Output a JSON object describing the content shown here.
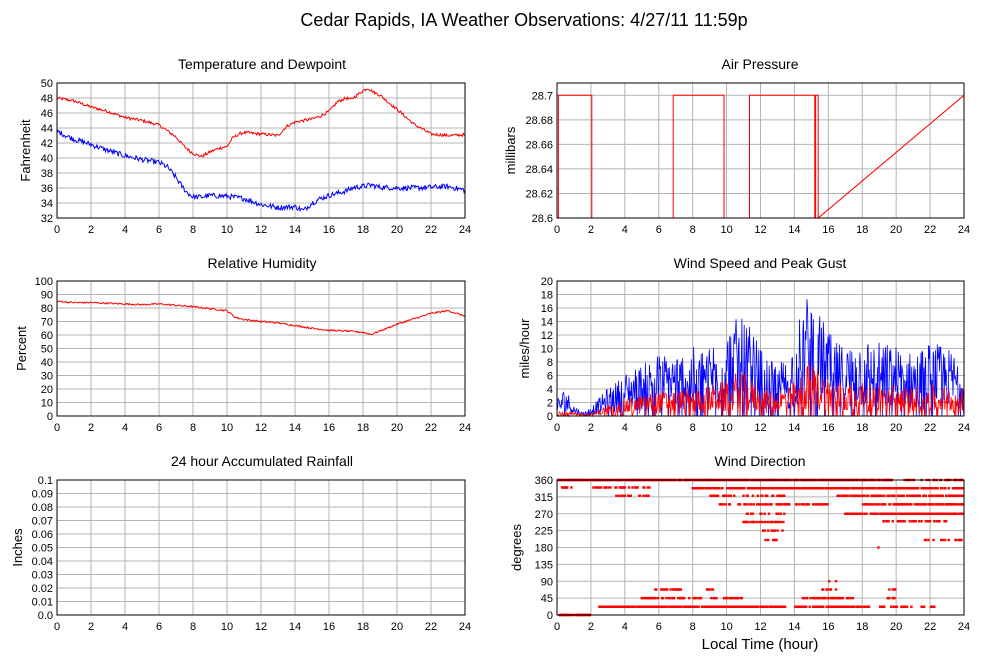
{
  "title": "Cedar Rapids, IA Weather Observations: 4/27/11 11:59p",
  "colors": {
    "primary": "#ff0000",
    "secondary": "#0000ff",
    "grid": "#b4b4b4"
  },
  "chart_data": [
    {
      "type": "line",
      "title": "Temperature and Dewpoint",
      "xlabel": "",
      "ylabel": "Fahrenheit",
      "xlim": [
        0,
        24
      ],
      "ylim": [
        32,
        50
      ],
      "xticks": [
        0,
        2,
        4,
        6,
        8,
        10,
        12,
        14,
        16,
        18,
        20,
        22,
        24
      ],
      "yticks": [
        "32",
        "34",
        "36",
        "38",
        "40",
        "42",
        "44",
        "46",
        "48",
        "50"
      ],
      "grid": true,
      "series": [
        {
          "color": "#ff0000",
          "noise": 0.2,
          "x": [
            0,
            1,
            2,
            3,
            4,
            5,
            6,
            7,
            7.5,
            8,
            8.5,
            9,
            9.5,
            10,
            10.3,
            10.7,
            11,
            12,
            13,
            13.5,
            14,
            14.5,
            15,
            15.5,
            16,
            16.5,
            17,
            17.3,
            17.6,
            18,
            18.3,
            18.6,
            19,
            19.5,
            20,
            20.5,
            21,
            22,
            23,
            24
          ],
          "y": [
            48,
            47.6,
            46.8,
            46.2,
            45.4,
            45,
            44.4,
            42.8,
            41.5,
            40.6,
            40.2,
            40.8,
            41.3,
            41.5,
            42.6,
            43.2,
            43.4,
            43.2,
            43,
            44.2,
            44.8,
            45,
            45.2,
            45.6,
            46.2,
            47.5,
            48,
            47.8,
            48.3,
            49,
            49.3,
            48.8,
            48.4,
            47.4,
            46.5,
            45.5,
            44.5,
            43.2,
            43,
            43.1
          ]
        },
        {
          "color": "#0000ff",
          "noise": 0.35,
          "x": [
            0,
            0.5,
            1,
            2,
            3,
            4,
            5,
            6,
            6.5,
            7,
            7.3,
            7.6,
            8,
            8.5,
            9,
            10,
            11,
            12,
            13,
            14,
            14.5,
            15,
            15.5,
            16,
            17,
            17.5,
            18,
            18.5,
            19,
            20,
            21,
            22,
            23,
            24
          ],
          "y": [
            43.6,
            43,
            42.5,
            41.8,
            41,
            40.3,
            39.8,
            39.4,
            38.8,
            37.4,
            36.4,
            35.5,
            34.8,
            34.8,
            35,
            34.9,
            34.6,
            33.8,
            33.4,
            33.5,
            33,
            34,
            34.6,
            35,
            35.6,
            36.1,
            36.2,
            36.4,
            36.1,
            36,
            36,
            36.1,
            36.2,
            35.7
          ]
        }
      ]
    },
    {
      "type": "line",
      "title": "Air Pressure",
      "xlabel": "",
      "ylabel": "millibars",
      "xlim": [
        0,
        24
      ],
      "ylim": [
        28.6,
        28.71
      ],
      "xticks": [
        0,
        2,
        4,
        6,
        8,
        10,
        12,
        14,
        16,
        18,
        20,
        22,
        24
      ],
      "yticks": [
        "28.6",
        "28.62",
        "28.64",
        "28.66",
        "28.68",
        "28.7"
      ],
      "grid": true,
      "series": [
        {
          "color": "#ff0000",
          "noise": 0,
          "x": [
            0,
            0.08,
            0.08,
            2.05,
            2.05,
            6.85,
            6.85,
            9.85,
            9.85,
            11.35,
            11.35,
            15.2,
            15.2,
            15.25,
            15.25,
            15.4,
            15.4,
            24
          ],
          "y": [
            28.6,
            28.6,
            28.7,
            28.7,
            28.6,
            28.6,
            28.7,
            28.7,
            28.6,
            28.6,
            28.7,
            28.7,
            28.6,
            28.6,
            28.7,
            28.7,
            28.6,
            28.7
          ]
        }
      ]
    },
    {
      "type": "line",
      "title": "Relative Humidity",
      "xlabel": "",
      "ylabel": "Percent",
      "xlim": [
        0,
        24
      ],
      "ylim": [
        0,
        100
      ],
      "xticks": [
        0,
        2,
        4,
        6,
        8,
        10,
        12,
        14,
        16,
        18,
        20,
        22,
        24
      ],
      "yticks": [
        "0",
        "10",
        "20",
        "30",
        "40",
        "50",
        "60",
        "70",
        "80",
        "90",
        "100"
      ],
      "grid": true,
      "series": [
        {
          "color": "#ff0000",
          "noise": 0.6,
          "x": [
            0,
            1,
            2,
            3,
            4,
            5,
            6,
            7,
            8,
            9,
            10,
            10.5,
            11,
            12,
            13,
            14,
            15,
            16,
            17,
            18,
            18.5,
            19,
            20,
            21,
            22,
            23,
            24
          ],
          "y": [
            85,
            84,
            84,
            83.5,
            83,
            82.5,
            83,
            82,
            81,
            79.5,
            78,
            73,
            71.5,
            70,
            69,
            67,
            65,
            63.5,
            63,
            62,
            60.5,
            63,
            68,
            72,
            76,
            78,
            74
          ]
        }
      ]
    },
    {
      "type": "bar",
      "title": "Wind Speed and Peak Gust",
      "xlabel": "",
      "ylabel": "miles/hour",
      "xlim": [
        0,
        24
      ],
      "ylim": [
        0,
        20
      ],
      "xticks": [
        0,
        2,
        4,
        6,
        8,
        10,
        12,
        14,
        16,
        18,
        20,
        22,
        24
      ],
      "yticks": [
        "0",
        "2",
        "4",
        "6",
        "8",
        "10",
        "12",
        "14",
        "16",
        "18",
        "20"
      ],
      "grid": true,
      "series": [
        {
          "name": "",
          "color": "#0000ff",
          "noise": 0.55,
          "x": [
            0,
            0.5,
            1,
            1.5,
            2,
            2.5,
            3,
            3.5,
            4,
            5,
            6,
            7,
            8,
            9,
            10,
            10.5,
            11,
            11.5,
            12,
            12.5,
            13,
            13.5,
            14,
            14.5,
            15,
            15.5,
            16,
            16.5,
            17,
            17.5,
            18,
            19,
            20,
            21,
            22,
            23,
            24
          ],
          "y": [
            1.5,
            2.5,
            1,
            0.3,
            0.8,
            1.6,
            2.5,
            3,
            3.8,
            4.5,
            5.5,
            5.5,
            6,
            6.5,
            7.5,
            8.5,
            8.5,
            7.5,
            6,
            5,
            4.8,
            5,
            7,
            10,
            11,
            9,
            7.5,
            6.5,
            6.2,
            6.5,
            7,
            6.5,
            6.2,
            5.5,
            6.5,
            6,
            5
          ]
        },
        {
          "name": "",
          "color": "#ff0000",
          "noise": 0.5,
          "x": [
            0,
            1,
            2,
            2.5,
            3,
            4,
            5,
            6,
            7,
            8,
            9,
            10,
            10.5,
            11,
            11.5,
            12,
            13,
            14,
            14.5,
            15,
            15.5,
            16,
            17,
            18,
            19,
            20,
            21,
            22,
            23,
            24
          ],
          "y": [
            0.5,
            0.3,
            0.2,
            0.6,
            1,
            1.5,
            1.8,
            2.2,
            2.2,
            2.4,
            2.6,
            3.2,
            3.8,
            3.8,
            3.2,
            2.4,
            2.2,
            3,
            4.3,
            4.8,
            4,
            3.3,
            2.9,
            2.9,
            2.8,
            2.7,
            2.5,
            2.8,
            2.6,
            2.4
          ]
        }
      ]
    },
    {
      "type": "line",
      "title": "24 hour Accumulated Rainfall",
      "xlabel": "",
      "ylabel": "Inches",
      "xlim": [
        0,
        24
      ],
      "ylim": [
        0,
        0.1
      ],
      "xticks": [
        0,
        2,
        4,
        6,
        8,
        10,
        12,
        14,
        16,
        18,
        20,
        22,
        24
      ],
      "yticks": [
        "0.0",
        "0.01",
        "0.02",
        "0.03",
        "0.04",
        "0.05",
        "0.06",
        "0.07",
        "0.08",
        "0.09",
        "0.1"
      ],
      "grid": true,
      "series": [
        {
          "color": "#ff0000",
          "noise": 0,
          "x": [
            0,
            24
          ],
          "y": [
            0,
            0
          ]
        }
      ]
    },
    {
      "type": "scatter",
      "title": "Wind Direction",
      "xlabel": "Local Time (hour)",
      "ylabel": "degrees",
      "xlim": [
        0,
        24
      ],
      "ylim": [
        0,
        360
      ],
      "xticks": [
        0,
        2,
        4,
        6,
        8,
        10,
        12,
        14,
        16,
        18,
        20,
        22,
        24
      ],
      "yticks": [
        "0",
        "45",
        "90",
        "135",
        "180",
        "225",
        "270",
        "315",
        "360"
      ],
      "grid": true,
      "series": [
        {
          "color": "#ff0000",
          "clusters": [
            {
              "x0": 0,
              "x1": 2.0,
              "y": 0,
              "d": 0.8,
              "j": 0
            },
            {
              "x0": 0,
              "x1": 4.5,
              "y": 360,
              "d": 0.85,
              "j": 0
            },
            {
              "x0": 4.5,
              "x1": 19.8,
              "y": 360,
              "d": 0.85,
              "j": 0
            },
            {
              "x0": 20.5,
              "x1": 24,
              "y": 360,
              "d": 0.4,
              "j": 0
            },
            {
              "x0": 0.1,
              "x1": 0.9,
              "y": 340,
              "d": 0.5,
              "j": 0
            },
            {
              "x0": 2.0,
              "x1": 5.5,
              "y": 340,
              "d": 0.35,
              "j": 0
            },
            {
              "x0": 8.0,
              "x1": 21.0,
              "y": 338,
              "d": 0.75,
              "j": 0
            },
            {
              "x0": 20.5,
              "x1": 24,
              "y": 338,
              "d": 0.6,
              "j": 0
            },
            {
              "x0": 3.5,
              "x1": 5.5,
              "y": 318,
              "d": 0.35,
              "j": 0
            },
            {
              "x0": 9.0,
              "x1": 10.5,
              "y": 318,
              "d": 0.4,
              "j": 0
            },
            {
              "x0": 11.0,
              "x1": 13.5,
              "y": 318,
              "d": 0.4,
              "j": 0
            },
            {
              "x0": 16.5,
              "x1": 20.5,
              "y": 318,
              "d": 0.45,
              "j": 0
            },
            {
              "x0": 20.5,
              "x1": 24,
              "y": 318,
              "d": 0.6,
              "j": 0
            },
            {
              "x0": 9.5,
              "x1": 11,
              "y": 295,
              "d": 0.3,
              "j": 0
            },
            {
              "x0": 11,
              "x1": 16,
              "y": 295,
              "d": 0.35,
              "j": 0
            },
            {
              "x0": 18,
              "x1": 24,
              "y": 295,
              "d": 0.6,
              "j": 0
            },
            {
              "x0": 17,
              "x1": 24,
              "y": 270,
              "d": 0.85,
              "j": 0
            },
            {
              "x0": 10.5,
              "x1": 13.5,
              "y": 270,
              "d": 0.25,
              "j": 0
            },
            {
              "x0": 19,
              "x1": 23,
              "y": 250,
              "d": 0.35,
              "j": 0
            },
            {
              "x0": 11,
              "x1": 13.5,
              "y": 248,
              "d": 0.3,
              "j": 0
            },
            {
              "x0": 12,
              "x1": 13.5,
              "y": 225,
              "d": 0.25,
              "j": 0
            },
            {
              "x0": 12.3,
              "x1": 13,
              "y": 200,
              "d": 0.3,
              "j": 0
            },
            {
              "x0": 21.5,
              "x1": 24,
              "y": 200,
              "d": 0.2,
              "j": 0
            },
            {
              "x0": 12.5,
              "x1": 21,
              "y": 180,
              "d": 0.02,
              "j": 0
            },
            {
              "x0": 2.5,
              "x1": 13.5,
              "y": 22,
              "d": 0.8,
              "j": 0
            },
            {
              "x0": 14,
              "x1": 18.5,
              "y": 22,
              "d": 0.5,
              "j": 0
            },
            {
              "x0": 19,
              "x1": 21,
              "y": 22,
              "d": 0.3,
              "j": 0
            },
            {
              "x0": 21.5,
              "x1": 22.5,
              "y": 22,
              "d": 0.4,
              "j": 0
            },
            {
              "x0": 5,
              "x1": 8.5,
              "y": 45,
              "d": 0.5,
              "j": 0
            },
            {
              "x0": 9,
              "x1": 11,
              "y": 45,
              "d": 0.4,
              "j": 0
            },
            {
              "x0": 14.5,
              "x1": 17.5,
              "y": 45,
              "d": 0.45,
              "j": 0
            },
            {
              "x0": 19.5,
              "x1": 20,
              "y": 45,
              "d": 0.4,
              "j": 0
            },
            {
              "x0": 5.8,
              "x1": 7.3,
              "y": 68,
              "d": 0.5,
              "j": 0
            },
            {
              "x0": 8.7,
              "x1": 9.3,
              "y": 68,
              "d": 0.3,
              "j": 0
            },
            {
              "x0": 15.6,
              "x1": 16.5,
              "y": 68,
              "d": 0.3,
              "j": 0
            },
            {
              "x0": 19.6,
              "x1": 20.1,
              "y": 68,
              "d": 0.3,
              "j": 0
            },
            {
              "x0": 16,
              "x1": 17.2,
              "y": 90,
              "d": 0.15,
              "j": 0
            }
          ]
        }
      ]
    }
  ]
}
